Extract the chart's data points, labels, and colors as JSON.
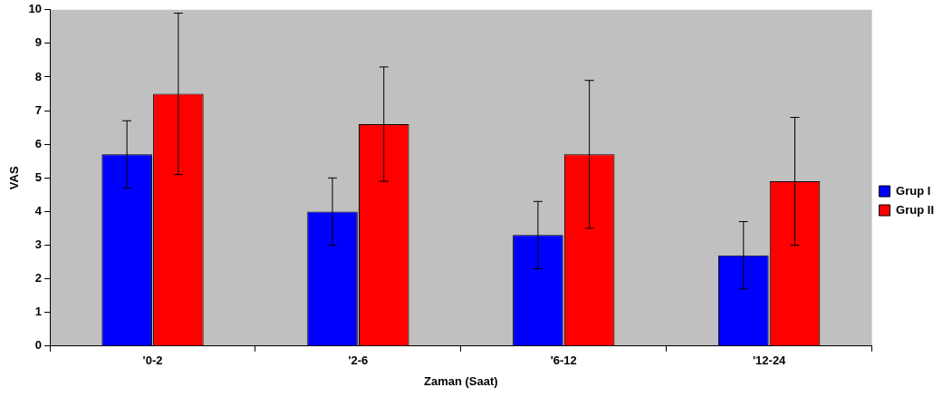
{
  "chart_data": {
    "type": "bar",
    "xlabel": "Zaman (Saat)",
    "ylabel": "VAS",
    "categories": [
      "'0-2",
      "'2-6",
      "'6-12",
      "'12-24"
    ],
    "series": [
      {
        "name": "Grup I",
        "color": "#0000ff",
        "values": [
          5.7,
          4.0,
          3.3,
          2.7
        ],
        "errors": [
          1.0,
          1.0,
          1.0,
          1.0
        ]
      },
      {
        "name": "Grup II",
        "color": "#ff0000",
        "values": [
          7.5,
          6.6,
          5.7,
          4.9
        ],
        "errors": [
          2.4,
          1.7,
          2.2,
          1.9
        ]
      }
    ],
    "ylim": [
      0,
      10
    ],
    "yticks": [
      0,
      1,
      2,
      3,
      4,
      5,
      6,
      7,
      8,
      9,
      10
    ],
    "grid": false,
    "legend": "right"
  }
}
